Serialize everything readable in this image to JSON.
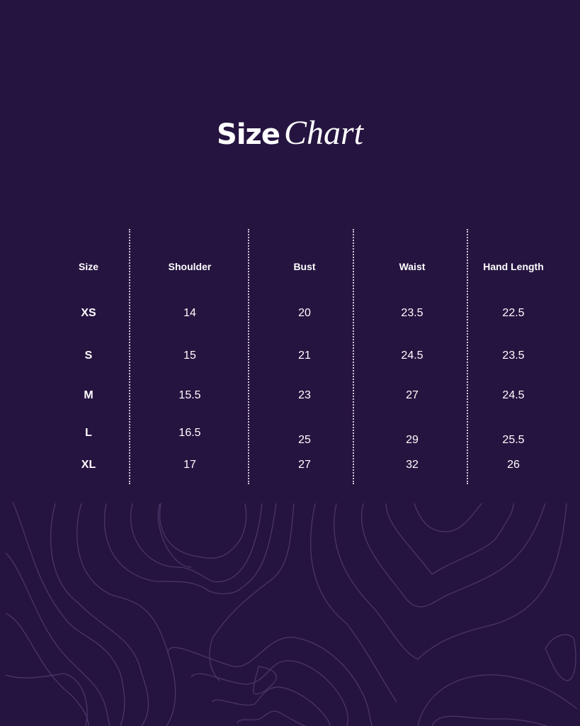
{
  "title": {
    "bold": "Size",
    "script": "Chart"
  },
  "table": {
    "headers": [
      "Size",
      "Shoulder",
      "Bust",
      "Waist",
      "Hand Length"
    ],
    "rows": [
      [
        "XS",
        "14",
        "20",
        "23.5",
        "22.5"
      ],
      [
        "S",
        "15",
        "21",
        "24.5",
        "23.5"
      ],
      [
        "M",
        "15.5",
        "23",
        "27",
        "24.5"
      ],
      [
        "L",
        "16.5",
        "25",
        "29",
        "25.5"
      ],
      [
        "XL",
        "17",
        "27",
        "32",
        "26"
      ]
    ]
  },
  "colors": {
    "background": "#261440",
    "contour": "#4a3568",
    "text": "#ffffff"
  }
}
